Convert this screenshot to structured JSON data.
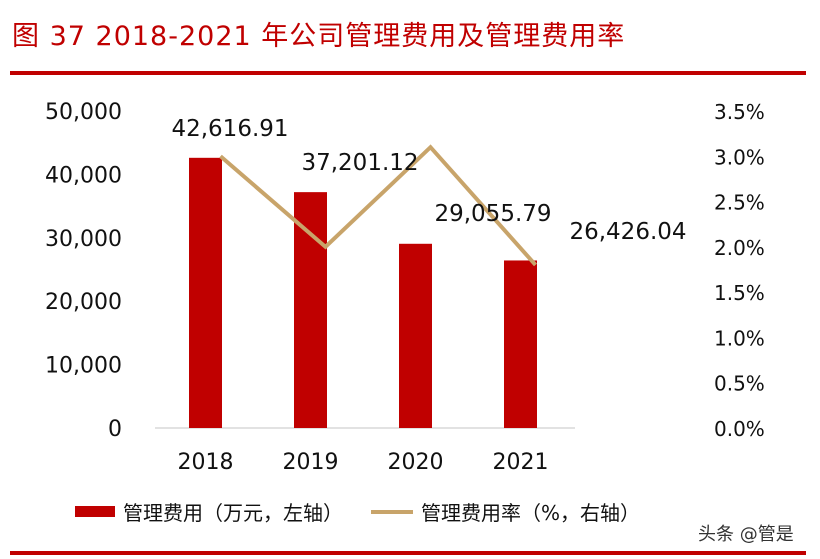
{
  "title": "图 37 2018-2021 年公司管理费用及管理费用率",
  "watermark": "头条 @管是",
  "colors": {
    "bar": "#c00000",
    "line": "#c8a46a",
    "rule": "#c00000"
  },
  "chart_data": {
    "type": "bar+line",
    "categories": [
      "2018",
      "2019",
      "2020",
      "2021"
    ],
    "series": [
      {
        "name": "管理费用（万元，左轴）",
        "type": "bar",
        "axis": "left",
        "values": [
          42616.91,
          37201.12,
          29055.79,
          26426.04
        ],
        "labels": [
          "42,616.91",
          "37,201.12",
          "29,055.79",
          "26,426.04"
        ]
      },
      {
        "name": "管理费用率（%，右轴）",
        "type": "line",
        "axis": "right",
        "values": [
          3.0,
          2.0,
          3.1,
          1.8
        ]
      }
    ],
    "left_axis": {
      "range": [
        0,
        50000
      ],
      "ticks": [
        "0",
        "10,000",
        "20,000",
        "30,000",
        "40,000",
        "50,000"
      ]
    },
    "right_axis": {
      "range": [
        0,
        3.5
      ],
      "ticks": [
        "0.0%",
        "0.5%",
        "1.0%",
        "1.5%",
        "2.0%",
        "2.5%",
        "3.0%",
        "3.5%"
      ]
    },
    "legend_position": "bottom",
    "grid": false
  }
}
